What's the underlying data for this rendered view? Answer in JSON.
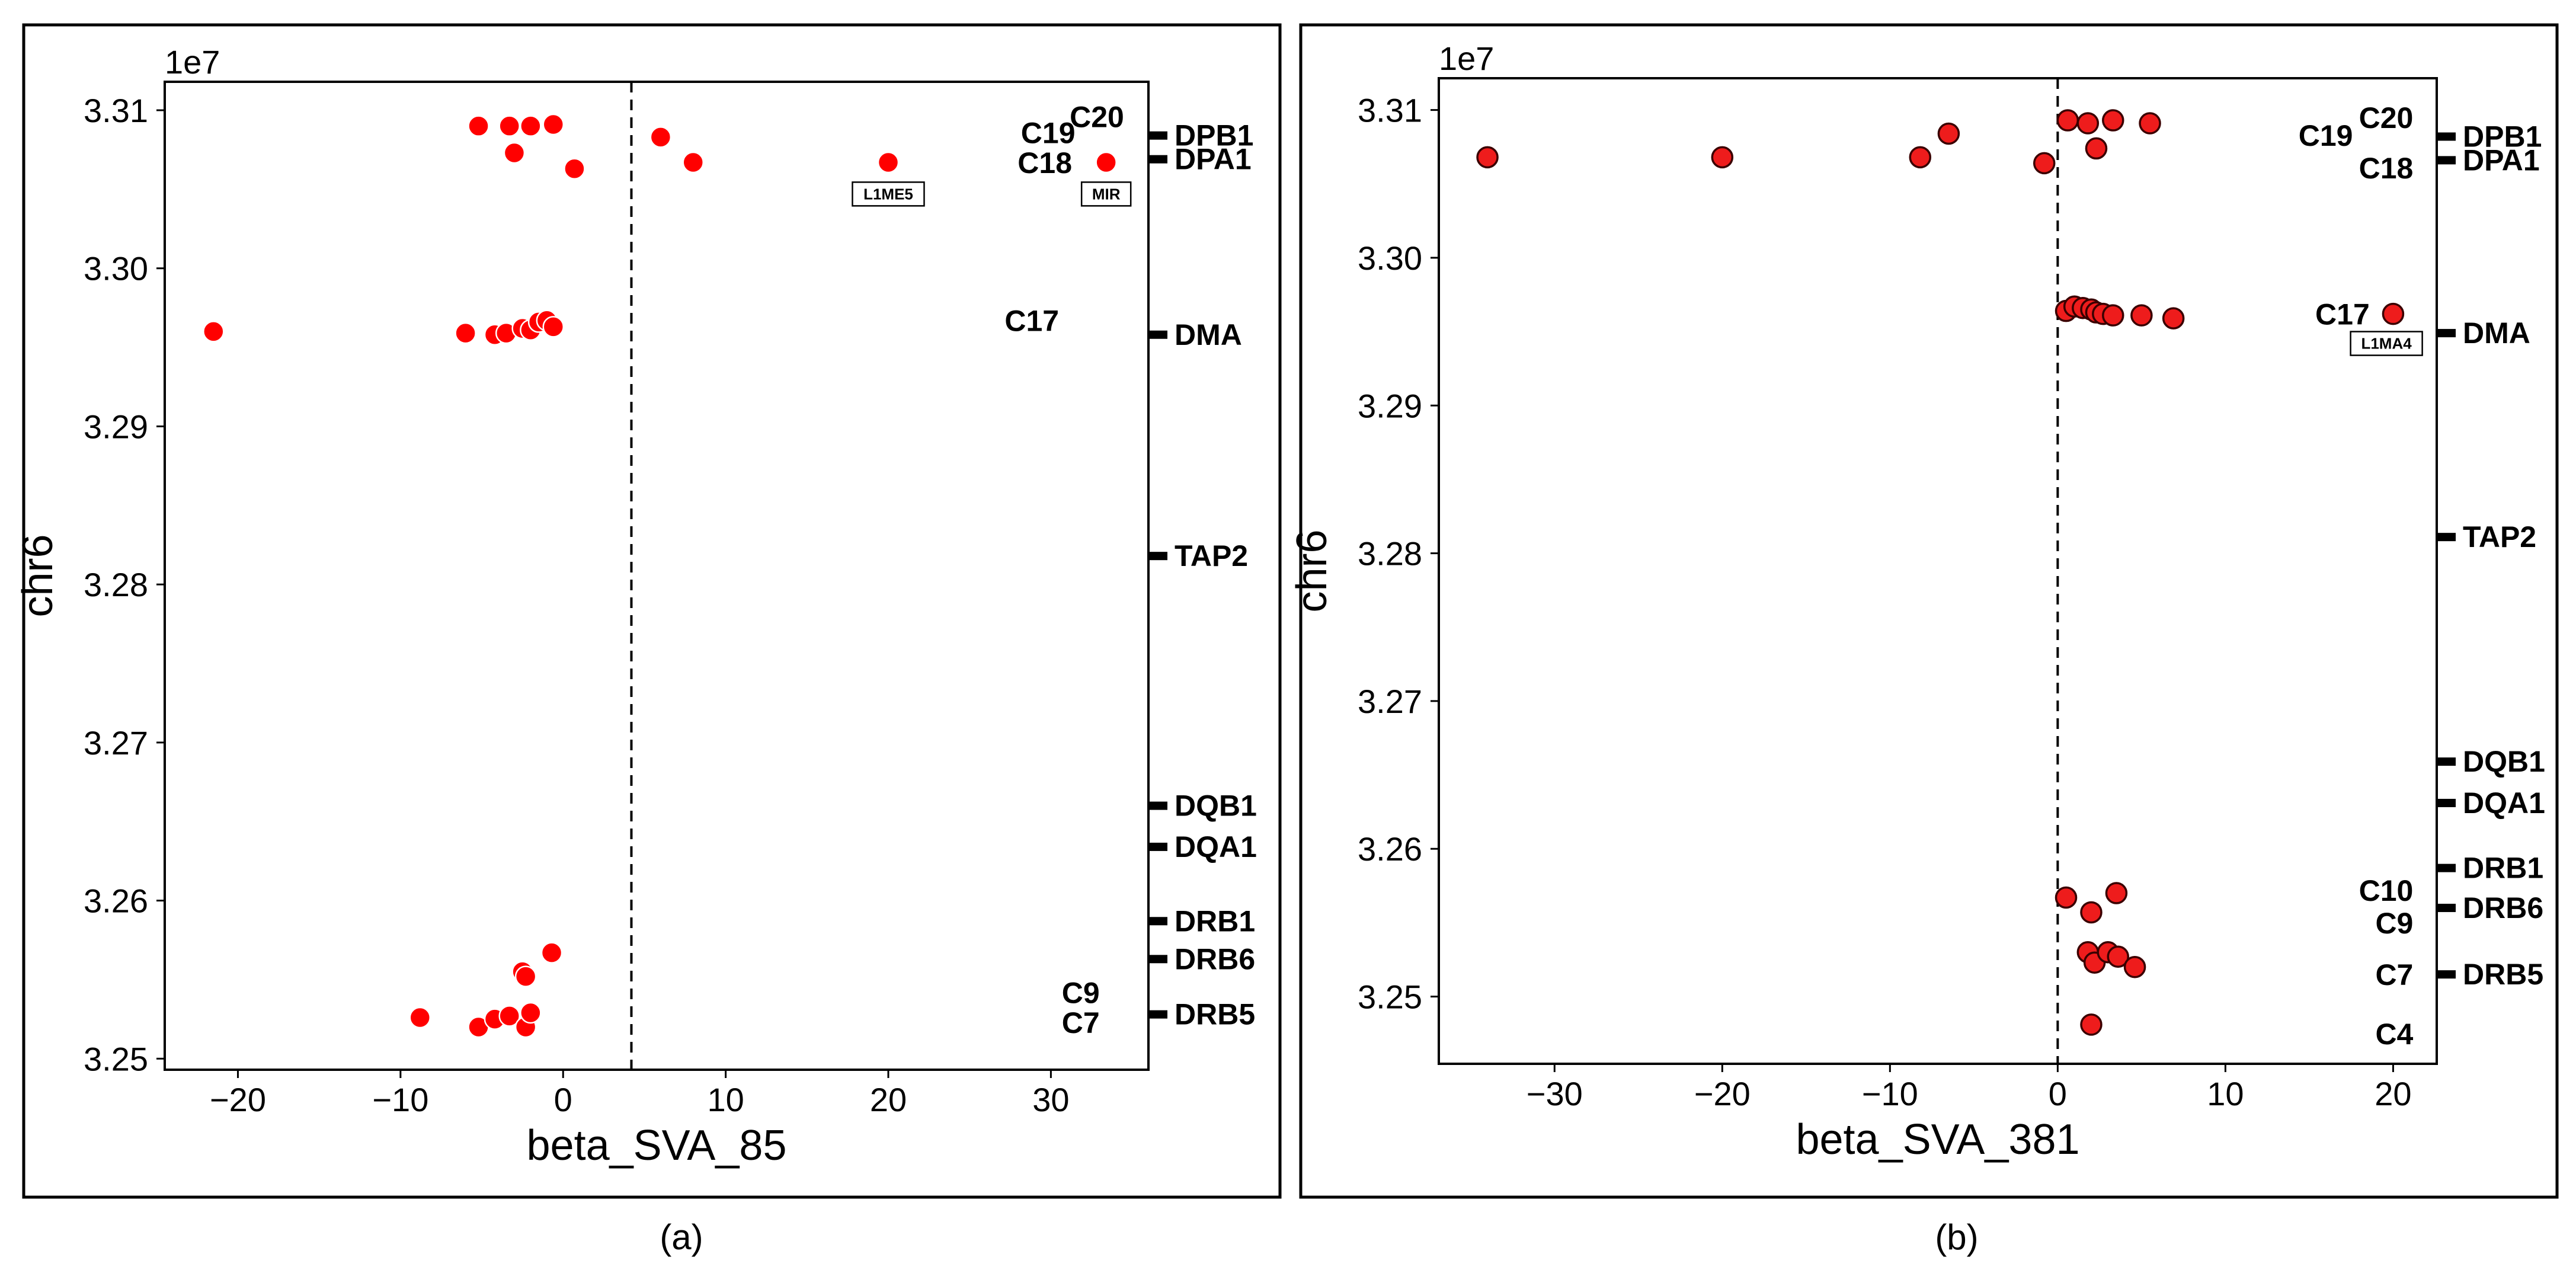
{
  "chart_data": [
    {
      "panel": "(a)",
      "type": "scatter",
      "xlabel": "beta_SVA_85",
      "ylabel": "chr6",
      "y_multiplier_label": "1e7",
      "xlim": [
        -24.5,
        36
      ],
      "ylim": [
        32.493,
        33.118
      ],
      "x_ticks": [
        -20,
        -10,
        0,
        10,
        20,
        30
      ],
      "y_ticks": [
        32.5,
        32.6,
        32.7,
        32.8,
        32.9,
        33.0,
        33.1
      ],
      "y_tick_labels": [
        "3.25",
        "3.26",
        "3.27",
        "3.28",
        "3.29",
        "3.30",
        "3.31"
      ],
      "x_tick_labels": [
        "−20",
        "−10",
        "0",
        "10",
        "20",
        "30"
      ],
      "threshold_x": 4.2,
      "marker_style": "plain",
      "points": [
        {
          "x": -5.2,
          "y": 33.09
        },
        {
          "x": -3.3,
          "y": 33.09
        },
        {
          "x": -2.0,
          "y": 33.09
        },
        {
          "x": -0.6,
          "y": 33.091
        },
        {
          "x": -3.0,
          "y": 33.073
        },
        {
          "x": 0.7,
          "y": 33.063
        },
        {
          "x": 6.0,
          "y": 33.083
        },
        {
          "x": 8.0,
          "y": 33.067
        },
        {
          "x": 20.0,
          "y": 33.067
        },
        {
          "x": 33.4,
          "y": 33.067
        },
        {
          "x": -21.5,
          "y": 32.96
        },
        {
          "x": -6.0,
          "y": 32.959
        },
        {
          "x": -4.2,
          "y": 32.958
        },
        {
          "x": -3.5,
          "y": 32.959
        },
        {
          "x": -2.5,
          "y": 32.962
        },
        {
          "x": -2.0,
          "y": 32.961
        },
        {
          "x": -1.5,
          "y": 32.966
        },
        {
          "x": -1.0,
          "y": 32.967
        },
        {
          "x": -0.6,
          "y": 32.963
        },
        {
          "x": -0.7,
          "y": 32.567
        },
        {
          "x": -2.5,
          "y": 32.555
        },
        {
          "x": -2.3,
          "y": 32.552
        },
        {
          "x": -8.8,
          "y": 32.526
        },
        {
          "x": -5.2,
          "y": 32.52
        },
        {
          "x": -4.2,
          "y": 32.525
        },
        {
          "x": -3.3,
          "y": 32.527
        },
        {
          "x": -2.3,
          "y": 32.52
        },
        {
          "x": -2.0,
          "y": 32.529
        }
      ],
      "point_labels": [
        {
          "text": "C20",
          "x": 34.5,
          "y": 33.096,
          "anchor": "end"
        },
        {
          "text": "C19",
          "x": 31.5,
          "y": 33.086,
          "anchor": "end"
        },
        {
          "text": "C18",
          "x": 31.3,
          "y": 33.067,
          "anchor": "end"
        },
        {
          "text": "C17",
          "x": 30.5,
          "y": 32.967,
          "anchor": "end"
        },
        {
          "text": "C9",
          "x": 33.0,
          "y": 32.542,
          "anchor": "end"
        },
        {
          "text": "C7",
          "x": 33.0,
          "y": 32.523,
          "anchor": "end"
        }
      ],
      "boxed_labels": [
        {
          "text": "L1ME5",
          "x": 20.0,
          "y": 33.047
        },
        {
          "text": "MIR",
          "x": 33.4,
          "y": 33.047
        }
      ],
      "genes": [
        {
          "name": "DPB1",
          "y": 33.084
        },
        {
          "name": "DPA1",
          "y": 33.069
        },
        {
          "name": "DMA",
          "y": 32.958
        },
        {
          "name": "TAP2",
          "y": 32.818
        },
        {
          "name": "DQB1",
          "y": 32.66
        },
        {
          "name": "DQA1",
          "y": 32.634
        },
        {
          "name": "DRB1",
          "y": 32.587
        },
        {
          "name": "DRB6",
          "y": 32.563
        },
        {
          "name": "DRB5",
          "y": 32.528
        }
      ],
      "color": "#ff0000"
    },
    {
      "panel": "(b)",
      "type": "scatter",
      "xlabel": "beta_SVA_381",
      "ylabel": "chr6",
      "y_multiplier_label": "1e7",
      "xlim": [
        -36.9,
        22.6
      ],
      "ylim": [
        32.4545,
        33.1215
      ],
      "x_ticks": [
        -30,
        -20,
        -10,
        0,
        10,
        20
      ],
      "y_ticks": [
        32.5,
        32.6,
        32.7,
        32.8,
        32.9,
        33.0,
        33.1
      ],
      "y_tick_labels": [
        "3.25",
        "3.26",
        "3.27",
        "3.28",
        "3.29",
        "3.30",
        "3.31"
      ],
      "x_tick_labels": [
        "−30",
        "−20",
        "−10",
        "0",
        "10",
        "20"
      ],
      "threshold_x": 0,
      "marker_style": "outlined",
      "points": [
        {
          "x": -34.0,
          "y": 33.068
        },
        {
          "x": -20.0,
          "y": 33.068
        },
        {
          "x": -8.2,
          "y": 33.068
        },
        {
          "x": -6.5,
          "y": 33.084
        },
        {
          "x": -0.8,
          "y": 33.064
        },
        {
          "x": 0.6,
          "y": 33.093
        },
        {
          "x": 1.8,
          "y": 33.091
        },
        {
          "x": 3.3,
          "y": 33.093
        },
        {
          "x": 5.5,
          "y": 33.091
        },
        {
          "x": 2.3,
          "y": 33.074
        },
        {
          "x": 0.5,
          "y": 32.964
        },
        {
          "x": 1.0,
          "y": 32.967
        },
        {
          "x": 1.5,
          "y": 32.966
        },
        {
          "x": 2.0,
          "y": 32.965
        },
        {
          "x": 2.3,
          "y": 32.963
        },
        {
          "x": 2.7,
          "y": 32.962
        },
        {
          "x": 3.3,
          "y": 32.961
        },
        {
          "x": 5.0,
          "y": 32.961
        },
        {
          "x": 6.9,
          "y": 32.959
        },
        {
          "x": 20.0,
          "y": 32.962
        },
        {
          "x": 0.5,
          "y": 32.567
        },
        {
          "x": 3.5,
          "y": 32.57
        },
        {
          "x": 2.0,
          "y": 32.557
        },
        {
          "x": 1.8,
          "y": 32.53
        },
        {
          "x": 2.2,
          "y": 32.523
        },
        {
          "x": 3.0,
          "y": 32.53
        },
        {
          "x": 3.6,
          "y": 32.527
        },
        {
          "x": 4.6,
          "y": 32.52
        },
        {
          "x": 2.0,
          "y": 32.481
        }
      ],
      "point_labels": [
        {
          "text": "C20",
          "x": 21.2,
          "y": 33.095,
          "anchor": "end"
        },
        {
          "text": "C19",
          "x": 17.6,
          "y": 33.083,
          "anchor": "end"
        },
        {
          "text": "C18",
          "x": 21.2,
          "y": 33.061,
          "anchor": "end"
        },
        {
          "text": "C17",
          "x": 18.6,
          "y": 32.962,
          "anchor": "end"
        },
        {
          "text": "C10",
          "x": 21.2,
          "y": 32.572,
          "anchor": "end"
        },
        {
          "text": "C9",
          "x": 21.2,
          "y": 32.55,
          "anchor": "end"
        },
        {
          "text": "C7",
          "x": 21.2,
          "y": 32.515,
          "anchor": "end"
        },
        {
          "text": "C4",
          "x": 21.2,
          "y": 32.475,
          "anchor": "end"
        }
      ],
      "boxed_labels": [
        {
          "text": "L1MA4",
          "x": 19.6,
          "y": 32.942
        }
      ],
      "genes": [
        {
          "name": "DPB1",
          "y": 33.082
        },
        {
          "name": "DPA1",
          "y": 33.066
        },
        {
          "name": "DMA",
          "y": 32.949
        },
        {
          "name": "TAP2",
          "y": 32.811
        },
        {
          "name": "DQB1",
          "y": 32.659
        },
        {
          "name": "DQA1",
          "y": 32.631
        },
        {
          "name": "DRB1",
          "y": 32.587
        },
        {
          "name": "DRB6",
          "y": 32.56
        },
        {
          "name": "DRB5",
          "y": 32.515
        }
      ],
      "color": "#ee1c1c"
    }
  ]
}
